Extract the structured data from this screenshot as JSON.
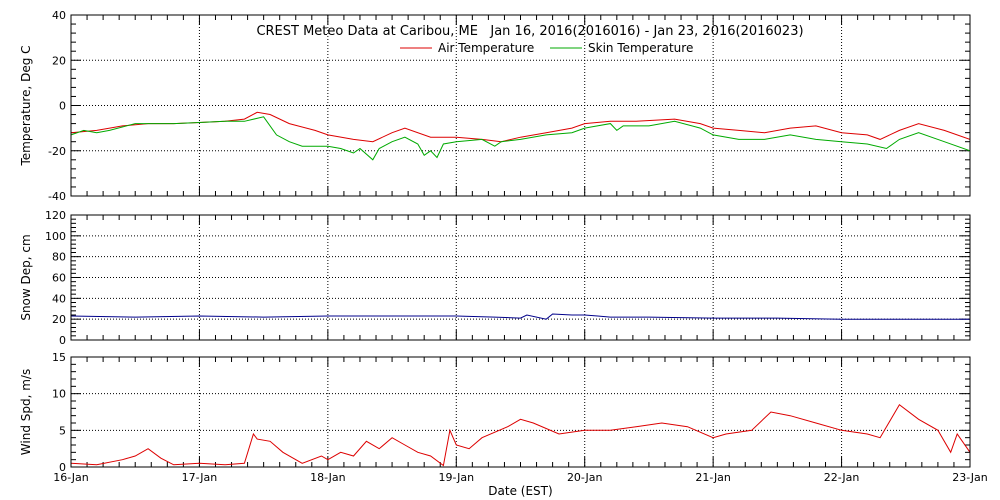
{
  "chart_data": [
    {
      "type": "line",
      "title": "CREST Meteo Data at Caribou, ME   Jan 16, 2016(2016016) - Jan 23, 2016(2016023)",
      "ylabel": "Temperature, Deg C",
      "ylim": [
        -40,
        40
      ],
      "yticks": [
        "-40",
        "-20",
        "0",
        "20",
        "40"
      ],
      "xlim": [
        "16-Jan",
        "23-Jan"
      ],
      "grid": true,
      "legend_position": "top-center",
      "series": [
        {
          "name": "Air Temperature",
          "color": "#dd0000",
          "x": [
            16.0,
            16.2,
            16.4,
            16.6,
            16.8,
            17.0,
            17.2,
            17.35,
            17.45,
            17.55,
            17.7,
            17.9,
            18.0,
            18.2,
            18.35,
            18.5,
            18.6,
            18.8,
            19.0,
            19.2,
            19.35,
            19.5,
            19.7,
            19.9,
            20.0,
            20.2,
            20.4,
            20.7,
            20.9,
            21.0,
            21.2,
            21.4,
            21.6,
            21.8,
            22.0,
            22.2,
            22.3,
            22.45,
            22.6,
            22.8,
            23.0
          ],
          "y": [
            -12,
            -11,
            -9,
            -8,
            -8,
            -7.5,
            -7,
            -6,
            -3,
            -4,
            -8,
            -11,
            -13,
            -15,
            -16,
            -12,
            -10,
            -14,
            -14,
            -15,
            -16,
            -14,
            -12,
            -10,
            -8,
            -7,
            -7,
            -6,
            -8,
            -10,
            -11,
            -12,
            -10,
            -9,
            -12,
            -13,
            -15,
            -11,
            -8,
            -11,
            -15
          ]
        },
        {
          "name": "Skin Temperature",
          "color": "#00aa00",
          "x": [
            16.0,
            16.1,
            16.2,
            16.3,
            16.5,
            16.8,
            17.0,
            17.2,
            17.35,
            17.5,
            17.6,
            17.7,
            17.8,
            18.0,
            18.1,
            18.2,
            18.25,
            18.35,
            18.4,
            18.5,
            18.6,
            18.7,
            18.75,
            18.8,
            18.85,
            18.9,
            19.0,
            19.2,
            19.3,
            19.35,
            19.5,
            19.7,
            19.9,
            20.0,
            20.2,
            20.25,
            20.3,
            20.5,
            20.7,
            20.9,
            21.0,
            21.2,
            21.4,
            21.6,
            21.8,
            22.0,
            22.2,
            22.35,
            22.45,
            22.6,
            22.8,
            23.0
          ],
          "y": [
            -13,
            -11,
            -12,
            -11,
            -8,
            -8,
            -7.5,
            -7,
            -7,
            -5,
            -13,
            -16,
            -18,
            -18,
            -19,
            -21,
            -19,
            -24,
            -19,
            -16,
            -14,
            -17,
            -22,
            -20,
            -23,
            -17,
            -16,
            -15,
            -18,
            -16,
            -15,
            -13,
            -12,
            -10,
            -8,
            -11,
            -9,
            -9,
            -7,
            -10,
            -13,
            -15,
            -15,
            -13,
            -15,
            -16,
            -17,
            -19,
            -15,
            -12,
            -16,
            -20
          ]
        }
      ]
    },
    {
      "type": "line",
      "ylabel": "Snow Dep, cm",
      "ylim": [
        0,
        120
      ],
      "yticks": [
        "0",
        "20",
        "40",
        "60",
        "80",
        "100",
        "120"
      ],
      "grid": true,
      "series": [
        {
          "color": "#00008b",
          "x": [
            16.0,
            16.5,
            17.0,
            17.5,
            18.0,
            18.5,
            19.0,
            19.3,
            19.5,
            19.55,
            19.7,
            19.75,
            19.9,
            20.0,
            20.1,
            20.2,
            20.5,
            21.0,
            21.5,
            22.0,
            22.5,
            23.0
          ],
          "y": [
            23,
            22,
            23,
            22,
            23,
            23,
            23,
            22,
            21,
            24,
            20,
            25,
            24,
            24,
            23,
            22,
            22,
            21,
            21,
            20,
            20,
            20
          ]
        }
      ]
    },
    {
      "type": "line",
      "ylabel": "Wind Spd, m/s",
      "xlabel": "Date (EST)",
      "ylim": [
        0,
        15
      ],
      "yticks": [
        "0",
        "5",
        "10",
        "15"
      ],
      "xticks": [
        "16-Jan",
        "17-Jan",
        "18-Jan",
        "19-Jan",
        "20-Jan",
        "21-Jan",
        "22-Jan",
        "23-Jan"
      ],
      "grid": true,
      "series": [
        {
          "color": "#dd0000",
          "x": [
            16.0,
            16.2,
            16.4,
            16.5,
            16.6,
            16.7,
            16.8,
            17.0,
            17.2,
            17.35,
            17.42,
            17.45,
            17.55,
            17.65,
            17.8,
            17.95,
            18.0,
            18.1,
            18.2,
            18.3,
            18.4,
            18.5,
            18.6,
            18.7,
            18.8,
            18.9,
            18.95,
            19.0,
            19.1,
            19.2,
            19.4,
            19.5,
            19.6,
            19.8,
            20.0,
            20.2,
            20.4,
            20.6,
            20.8,
            21.0,
            21.1,
            21.3,
            21.45,
            21.6,
            21.8,
            22.0,
            22.2,
            22.3,
            22.45,
            22.6,
            22.75,
            22.85,
            22.9,
            23.0
          ],
          "y": [
            0.5,
            0.3,
            1.0,
            1.5,
            2.5,
            1.2,
            0.3,
            0.5,
            0.3,
            0.5,
            4.5,
            3.8,
            3.5,
            2.0,
            0.5,
            1.5,
            1.0,
            2.0,
            1.5,
            3.5,
            2.5,
            4.0,
            3.0,
            2.0,
            1.5,
            0.2,
            5.0,
            3.0,
            2.5,
            4.0,
            5.5,
            6.5,
            6.0,
            4.5,
            5.0,
            5.0,
            5.5,
            6.0,
            5.5,
            4.0,
            4.5,
            5.0,
            7.5,
            7.0,
            6.0,
            5.0,
            4.5,
            4.0,
            8.5,
            6.5,
            5.0,
            2.0,
            4.5,
            2.0
          ]
        }
      ]
    }
  ]
}
